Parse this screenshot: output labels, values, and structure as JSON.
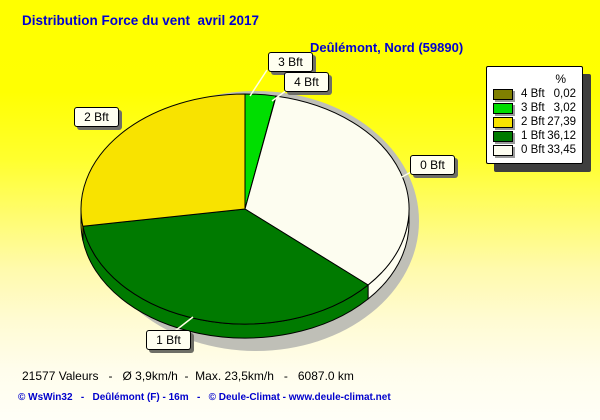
{
  "header": {
    "title": "Distribution Force du vent  avril 2017",
    "subtitle": "Deûlémont, Nord (59890)"
  },
  "chart_data": {
    "type": "pie",
    "style": "3d-pie",
    "title": "Distribution Force du vent  avril 2017",
    "subtitle": "Deûlémont, Nord (59890)",
    "unit": "%",
    "start_angle_deg": 0,
    "direction": "clockwise",
    "slices": [
      {
        "label": "3 Bft",
        "value": 3.02,
        "value_text": "3,02",
        "color": "#00DE00"
      },
      {
        "label": "4 Bft",
        "value": 0.02,
        "value_text": "0,02",
        "color": "#808000"
      },
      {
        "label": "0 Bft",
        "value": 33.45,
        "value_text": "33,45",
        "color": "#FDFDF0"
      },
      {
        "label": "1 Bft",
        "value": 36.12,
        "value_text": "36,12",
        "color": "#007A00"
      },
      {
        "label": "2 Bft",
        "value": 27.39,
        "value_text": "27,39",
        "color": "#F8E300"
      }
    ],
    "legend": {
      "header": "%",
      "rows_top_to_bottom": [
        "4 Bft",
        "3 Bft",
        "2 Bft",
        "1 Bft",
        "0 Bft"
      ],
      "position": "top-right"
    }
  },
  "footer": {
    "stats_line": "21577 Valeurs   -   Ø 3,9km/h  -  Max. 23,5km/h   -   6087.0 km",
    "credit_line": "© WsWin32   -   Deûlémont (F) - 16m   -   © Deule-Climat - www.deule-climat.net"
  },
  "colors": {
    "title_blue": "#0000D2",
    "credit_blue": "#0000CC",
    "shadow_gray": "#BFBFB7",
    "bg_top": "#FFFF00",
    "bg_bottom": "#FFFFF7"
  }
}
